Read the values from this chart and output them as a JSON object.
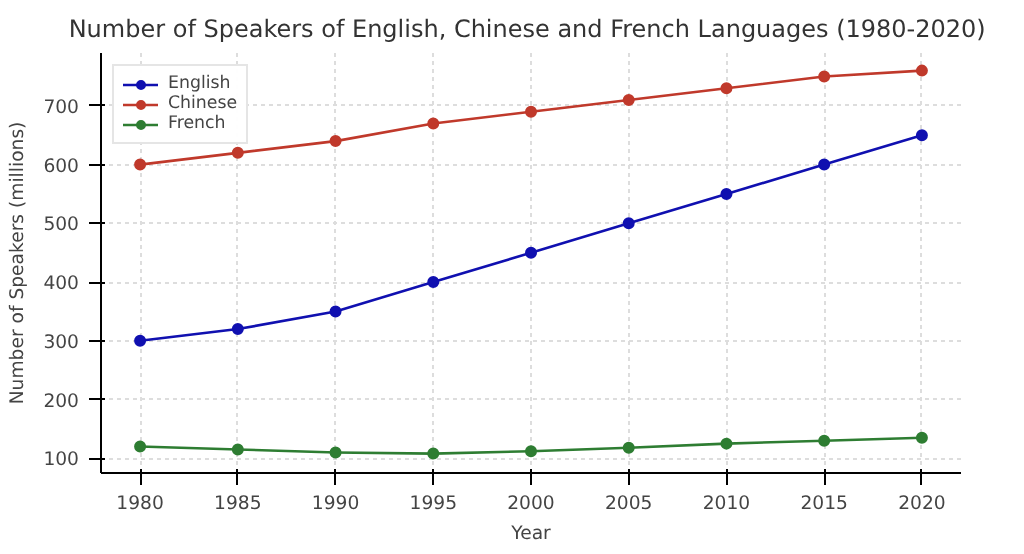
{
  "chart_data": {
    "type": "line",
    "title": "Number of Speakers of English, Chinese  and French Languages (1980-2020)",
    "xlabel": "Year",
    "ylabel": "Number of Speakers (millions)",
    "x": [
      1980,
      1985,
      1990,
      1995,
      2000,
      2005,
      2010,
      2015,
      2020
    ],
    "series": [
      {
        "name": "English",
        "color": "#1010b0",
        "values": [
          300,
          320,
          350,
          400,
          450,
          500,
          550,
          600,
          650
        ]
      },
      {
        "name": "Chinese",
        "color": "#c0392b",
        "values": [
          600,
          620,
          640,
          670,
          690,
          710,
          730,
          750,
          760
        ]
      },
      {
        "name": "French",
        "color": "#2e7d32",
        "values": [
          120,
          115,
          110,
          108,
          112,
          118,
          125,
          130,
          135
        ]
      }
    ],
    "xlim": [
      1978,
      2022
    ],
    "ylim": [
      75,
      790
    ],
    "xticks": [
      1980,
      1985,
      1990,
      1995,
      2000,
      2005,
      2010,
      2015,
      2020
    ],
    "yticks": [
      100,
      200,
      300,
      400,
      500,
      600,
      700
    ],
    "grid": true,
    "legend": "top left",
    "marker": "circle",
    "line_style": "solid"
  }
}
